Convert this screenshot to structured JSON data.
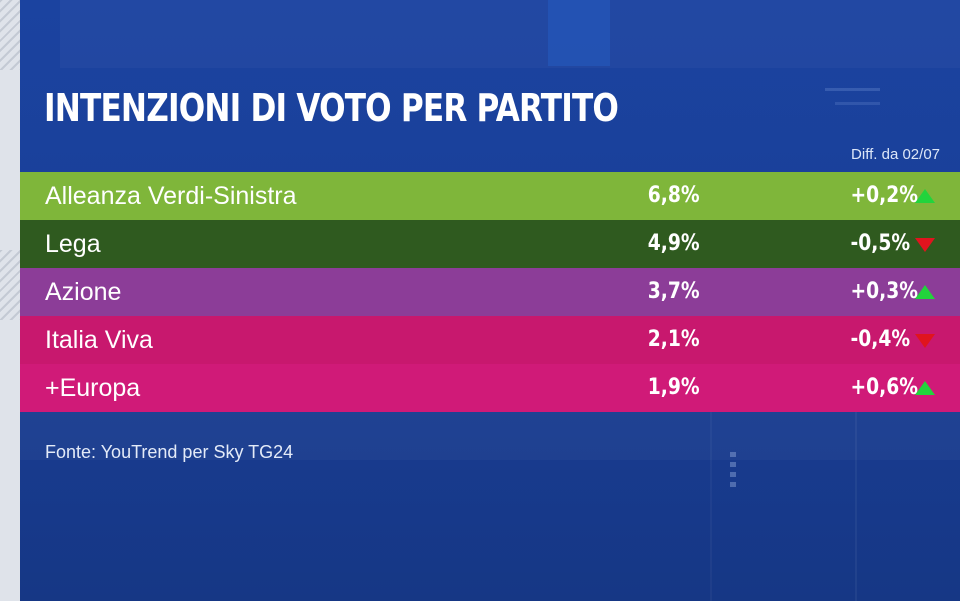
{
  "header": {
    "title": "INTENZIONI DI VOTO PER PARTITO",
    "diff_note": "Diff. da 02/07"
  },
  "chart_data": {
    "type": "table",
    "title": "INTENZIONI DI VOTO PER PARTITO",
    "columns_note": "Diff. da 02/07",
    "rows": [
      {
        "party": "Alleanza Verdi-Sinistra",
        "value": "6,8%",
        "change": "+0,2%",
        "direction": "up",
        "color": "#7fb63a"
      },
      {
        "party": "Lega",
        "value": "4,9%",
        "change": "-0,5%",
        "direction": "down",
        "color": "#2f5a1f"
      },
      {
        "party": "Azione",
        "value": "3,7%",
        "change": "+0,3%",
        "direction": "up",
        "color": "#8c3d98"
      },
      {
        "party": "Italia Viva",
        "value": "2,1%",
        "change": "-0,4%",
        "direction": "down",
        "color": "#c8186e"
      },
      {
        "party": "+Europa",
        "value": "1,9%",
        "change": "+0,6%",
        "direction": "up",
        "color": "#d01a78"
      }
    ],
    "source": "Fonte: YouTrend per Sky TG24"
  },
  "colors": {
    "panel_background": "#1b43a0",
    "arrow_up": "#22d43c",
    "arrow_down": "#e0141e"
  }
}
